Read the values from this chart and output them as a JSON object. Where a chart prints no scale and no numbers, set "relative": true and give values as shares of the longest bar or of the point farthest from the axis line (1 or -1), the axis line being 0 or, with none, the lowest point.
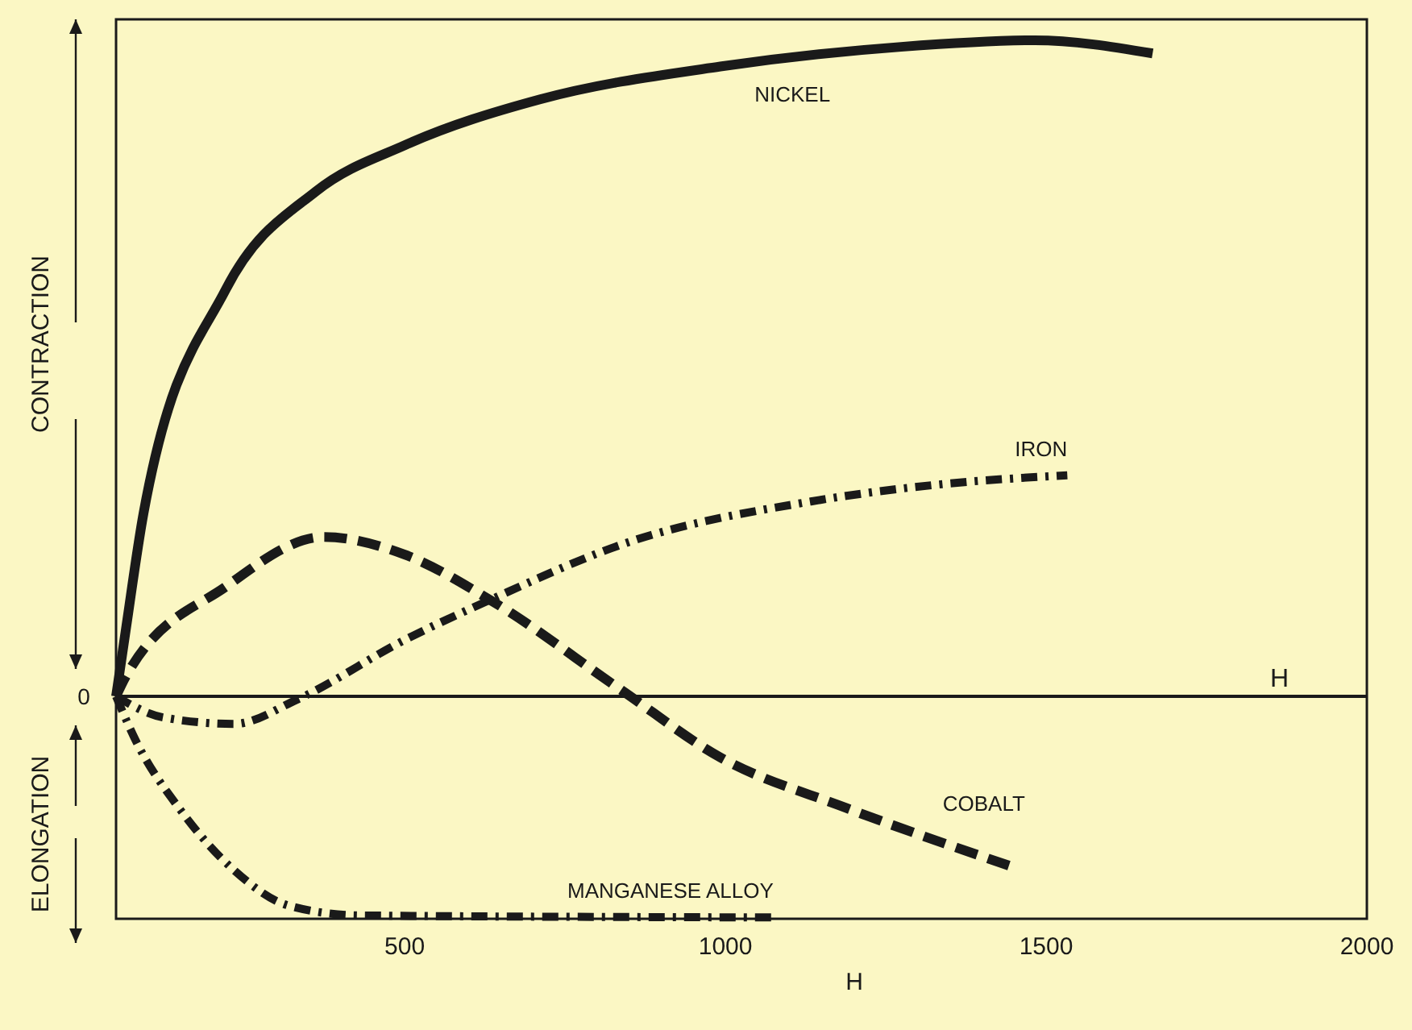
{
  "chart_data": {
    "type": "line",
    "relative": true,
    "xlabel": "H",
    "ylabel": "CONTRACTION",
    "xlim": [
      50,
      2000
    ],
    "xticks": [
      500,
      1000,
      1500,
      2000
    ],
    "ref_lines": [
      {
        "axis": "y",
        "value": 0,
        "label": "H",
        "color": "#1a1a1a",
        "line_style": "solid"
      }
    ],
    "annotations": [
      "ELONGATION",
      "0"
    ],
    "series": [
      {
        "name": "NICKEL",
        "color": "#1a1a1a",
        "line_style": "solid",
        "x": [
          50,
          65,
          93,
          221,
          362,
          500,
          711,
          992,
          1274,
          1482,
          1666
        ],
        "values": [
          0,
          0.1,
          0.28,
          0.62,
          0.77,
          0.84,
          0.91,
          0.96,
          0.99,
          1.0,
          0.98
        ]
      },
      {
        "name": "IRON",
        "color": "#1a1a1a",
        "line_style": "dashdot",
        "x": [
          50,
          123,
          234,
          332,
          500,
          633,
          852,
          1133,
          1344,
          1533
        ],
        "values": [
          0,
          -0.032,
          -0.042,
          -0.005,
          0.086,
          0.147,
          0.236,
          0.297,
          0.324,
          0.337
        ]
      },
      {
        "name": "COBALT",
        "color": "#1a1a1a",
        "line_style": "dashed",
        "x": [
          50,
          65,
          221,
          374,
          500,
          633,
          837,
          992,
          1188,
          1442
        ],
        "values": [
          0,
          0.03,
          0.167,
          0.243,
          0.216,
          0.147,
          0.01,
          -0.093,
          -0.17,
          -0.258
        ]
      },
      {
        "name": "MANGANESE ALLOY",
        "color": "#1a1a1a",
        "line_style": "dashdot",
        "x": [
          50,
          80,
          151,
          234,
          319,
          430,
          1075
        ],
        "values": [
          0,
          -0.066,
          -0.174,
          -0.265,
          -0.319,
          -0.334,
          -0.337
        ]
      }
    ]
  }
}
